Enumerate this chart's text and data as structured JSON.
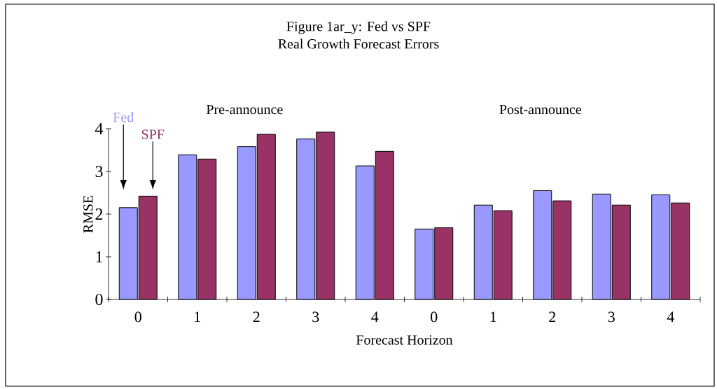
{
  "chart_data": {
    "type": "bar",
    "title": "Figure 1ar_y:  Fed vs SPF",
    "subtitle": "Real Growth Forecast Errors",
    "xlabel": "Forecast Horizon",
    "ylabel": "RMSE",
    "categories": [
      "0",
      "1",
      "2",
      "3",
      "4",
      "0",
      "1",
      "2",
      "3",
      "4"
    ],
    "series": [
      {
        "name": "Fed",
        "color": "#9999ff",
        "values": [
          2.15,
          3.39,
          3.58,
          3.76,
          3.13,
          1.65,
          2.21,
          2.55,
          2.47,
          2.45
        ]
      },
      {
        "name": "SPF",
        "color": "#993366",
        "values": [
          2.42,
          3.29,
          3.87,
          3.92,
          3.47,
          1.68,
          2.08,
          2.31,
          2.21,
          2.26
        ]
      }
    ],
    "ylim": [
      0,
      4
    ],
    "yticks": [
      0,
      1,
      2,
      3,
      4
    ],
    "annotations": [
      "Pre-announce",
      "Post-announce"
    ]
  }
}
